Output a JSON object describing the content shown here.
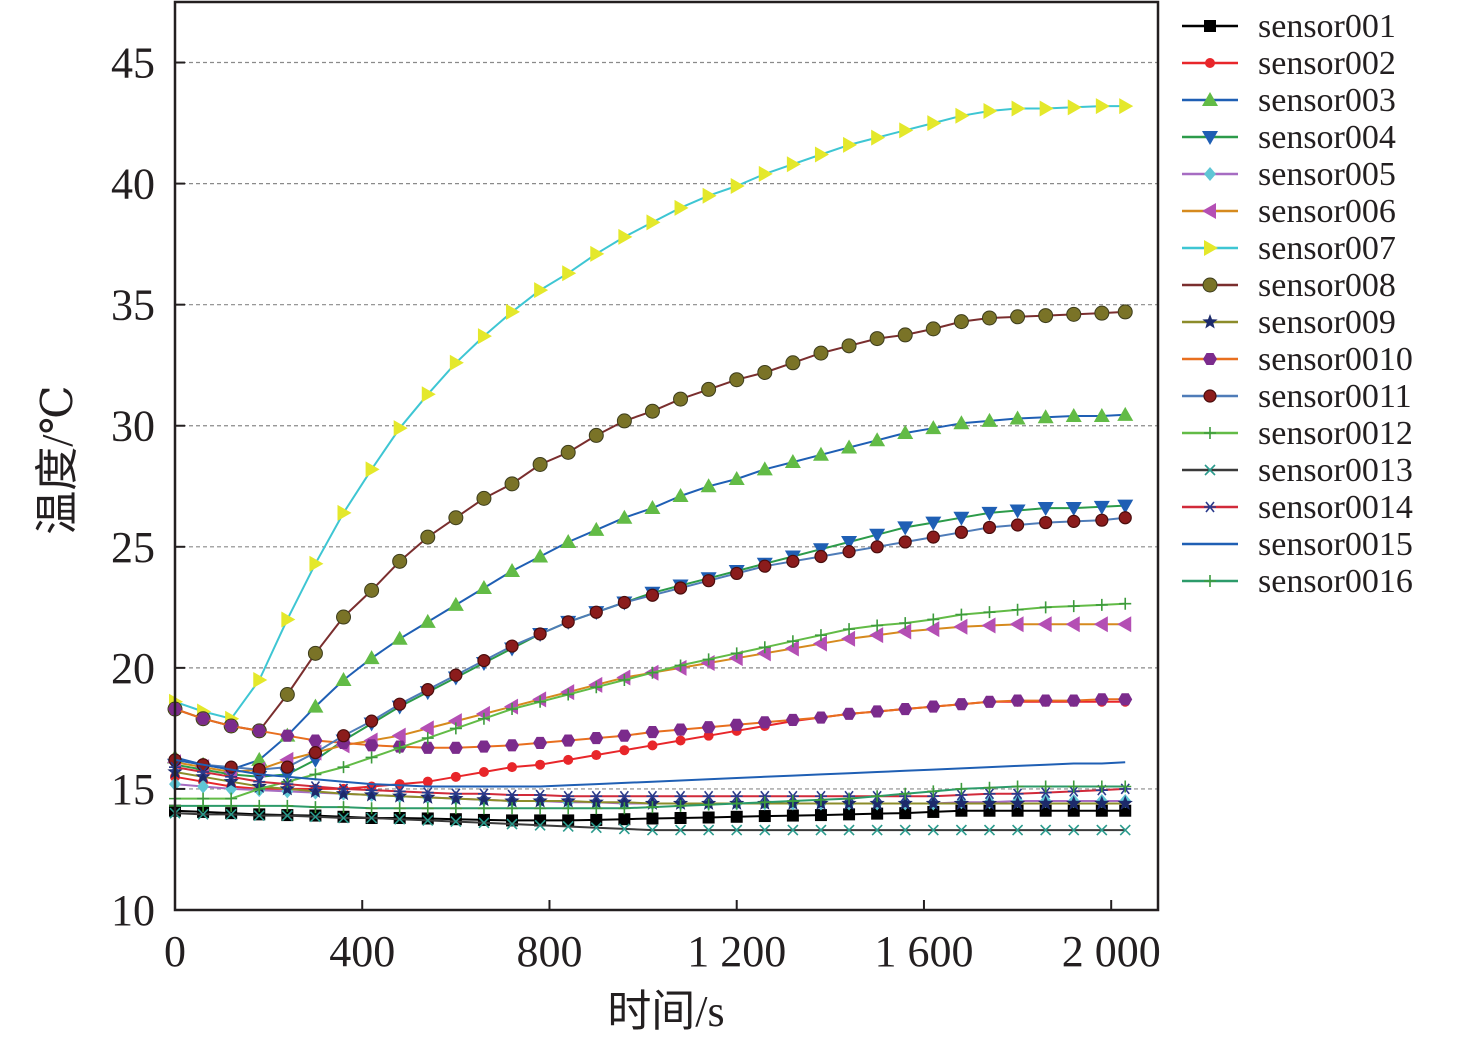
{
  "chart_data": {
    "type": "line",
    "xlabel": "时间/s",
    "ylabel": "温度/℃",
    "xlim": [
      0,
      2100
    ],
    "ylim": [
      10,
      47.5
    ],
    "x_ticks": [
      0,
      400,
      800,
      1200,
      1600,
      2000
    ],
    "x_tick_labels": [
      "0",
      "400",
      "800",
      "1 200",
      "1 600",
      "2 000"
    ],
    "y_ticks": [
      10,
      15,
      20,
      25,
      30,
      35,
      40,
      45
    ],
    "y_tick_labels": [
      "10",
      "15",
      "20",
      "25",
      "30",
      "35",
      "40",
      "45"
    ],
    "grid": "horizontal dashed",
    "legend_position": "right, outside plot",
    "x": [
      0,
      60,
      120,
      180,
      240,
      300,
      360,
      420,
      480,
      540,
      600,
      660,
      720,
      780,
      840,
      900,
      960,
      1020,
      1080,
      1140,
      1200,
      1260,
      1320,
      1380,
      1440,
      1500,
      1560,
      1620,
      1680,
      1740,
      1800,
      1860,
      1920,
      1980,
      2030
    ],
    "series": [
      {
        "name": "sensor001",
        "color": "#000000",
        "marker": "square",
        "values": [
          14.1,
          14.05,
          14.0,
          13.95,
          13.92,
          13.9,
          13.85,
          13.8,
          13.8,
          13.78,
          13.75,
          13.72,
          13.7,
          13.7,
          13.7,
          13.72,
          13.75,
          13.78,
          13.8,
          13.82,
          13.85,
          13.88,
          13.9,
          13.92,
          13.95,
          13.98,
          14.0,
          14.05,
          14.1,
          14.1,
          14.1,
          14.1,
          14.1,
          14.1,
          14.1
        ]
      },
      {
        "name": "sensor002",
        "color": "#e8262a",
        "marker": "dot",
        "values": [
          15.5,
          15.3,
          15.1,
          15.0,
          15.0,
          15.0,
          15.0,
          15.1,
          15.2,
          15.3,
          15.5,
          15.7,
          15.9,
          16.0,
          16.2,
          16.4,
          16.6,
          16.8,
          17.0,
          17.2,
          17.4,
          17.6,
          17.8,
          17.95,
          18.1,
          18.2,
          18.3,
          18.4,
          18.5,
          18.6,
          18.6,
          18.6,
          18.6,
          18.6,
          18.6
        ]
      },
      {
        "name": "sensor003",
        "color": "#62bb46",
        "line_color": "#1f5fb4",
        "marker": "triangle-up",
        "values": [
          16.3,
          16.0,
          15.8,
          16.2,
          17.2,
          18.4,
          19.5,
          20.4,
          21.2,
          21.9,
          22.6,
          23.3,
          24.0,
          24.6,
          25.2,
          25.7,
          26.2,
          26.6,
          27.1,
          27.5,
          27.8,
          28.2,
          28.5,
          28.8,
          29.1,
          29.4,
          29.7,
          29.9,
          30.1,
          30.2,
          30.3,
          30.35,
          30.4,
          30.4,
          30.45
        ]
      },
      {
        "name": "sensor004",
        "color": "#1f5fb4",
        "line_color": "#2c9b4a",
        "marker": "triangle-down",
        "values": [
          16.0,
          15.8,
          15.6,
          15.5,
          15.6,
          16.2,
          17.0,
          17.7,
          18.4,
          19.0,
          19.6,
          20.2,
          20.8,
          21.4,
          21.9,
          22.3,
          22.7,
          23.1,
          23.4,
          23.7,
          24.0,
          24.3,
          24.6,
          24.9,
          25.2,
          25.5,
          25.8,
          26.0,
          26.2,
          26.4,
          26.5,
          26.6,
          26.6,
          26.65,
          26.7
        ]
      },
      {
        "name": "sensor005",
        "color": "#5fc6d5",
        "line_color": "#a66cc2",
        "marker": "diamond",
        "values": [
          15.2,
          15.1,
          15.0,
          14.95,
          14.9,
          14.85,
          14.8,
          14.75,
          14.7,
          14.65,
          14.6,
          14.55,
          14.5,
          14.5,
          14.45,
          14.45,
          14.4,
          14.4,
          14.4,
          14.4,
          14.4,
          14.4,
          14.4,
          14.4,
          14.4,
          14.4,
          14.4,
          14.4,
          14.45,
          14.45,
          14.5,
          14.5,
          14.5,
          14.5,
          14.5
        ]
      },
      {
        "name": "sensor006",
        "color": "#b44fb4",
        "line_color": "#d68a1e",
        "marker": "triangle-left",
        "values": [
          16.1,
          15.9,
          15.7,
          15.8,
          16.2,
          16.5,
          16.8,
          17.0,
          17.2,
          17.5,
          17.8,
          18.1,
          18.4,
          18.7,
          19.0,
          19.3,
          19.6,
          19.8,
          20.0,
          20.2,
          20.4,
          20.6,
          20.8,
          21.0,
          21.2,
          21.35,
          21.5,
          21.6,
          21.7,
          21.75,
          21.8,
          21.8,
          21.8,
          21.8,
          21.8
        ]
      },
      {
        "name": "sensor007",
        "color": "#e4e82b",
        "line_color": "#3ec6d3",
        "marker": "triangle-right",
        "values": [
          18.6,
          18.2,
          17.9,
          19.5,
          22.0,
          24.3,
          26.4,
          28.2,
          29.9,
          31.3,
          32.6,
          33.7,
          34.7,
          35.6,
          36.3,
          37.1,
          37.8,
          38.4,
          39.0,
          39.5,
          39.9,
          40.4,
          40.8,
          41.2,
          41.6,
          41.9,
          42.2,
          42.5,
          42.8,
          43.0,
          43.1,
          43.1,
          43.15,
          43.2,
          43.2
        ]
      },
      {
        "name": "sensor008",
        "color": "#7a7327",
        "line_color": "#7a2e2e",
        "marker": "circle",
        "values": [
          18.3,
          17.9,
          17.6,
          17.4,
          18.9,
          20.6,
          22.1,
          23.2,
          24.4,
          25.4,
          26.2,
          27.0,
          27.6,
          28.4,
          28.9,
          29.6,
          30.2,
          30.6,
          31.1,
          31.5,
          31.9,
          32.2,
          32.6,
          33.0,
          33.3,
          33.6,
          33.75,
          34.0,
          34.3,
          34.45,
          34.5,
          34.55,
          34.6,
          34.65,
          34.7
        ]
      },
      {
        "name": "sensor009",
        "color": "#1c2a6b",
        "line_color": "#8c8c2a",
        "marker": "star",
        "values": [
          15.7,
          15.5,
          15.3,
          15.1,
          15.0,
          14.9,
          14.8,
          14.75,
          14.7,
          14.65,
          14.6,
          14.55,
          14.5,
          14.5,
          14.5,
          14.45,
          14.45,
          14.4,
          14.4,
          14.4,
          14.4,
          14.4,
          14.4,
          14.4,
          14.4,
          14.4,
          14.4,
          14.4,
          14.4,
          14.4,
          14.4,
          14.4,
          14.4,
          14.4,
          14.4
        ]
      },
      {
        "name": "sensor0010",
        "color": "#7b2b8c",
        "line_color": "#e86f1f",
        "marker": "hexagon",
        "values": [
          18.3,
          17.9,
          17.6,
          17.4,
          17.2,
          17.0,
          16.9,
          16.8,
          16.75,
          16.7,
          16.7,
          16.75,
          16.8,
          16.9,
          17.0,
          17.1,
          17.2,
          17.35,
          17.45,
          17.55,
          17.65,
          17.75,
          17.85,
          17.95,
          18.1,
          18.2,
          18.3,
          18.4,
          18.5,
          18.6,
          18.65,
          18.65,
          18.65,
          18.7,
          18.7
        ]
      },
      {
        "name": "sensor0011",
        "color": "#8b1c1c",
        "line_color": "#4f7cb8",
        "marker": "ball",
        "values": [
          16.2,
          16.0,
          15.9,
          15.8,
          15.9,
          16.5,
          17.2,
          17.8,
          18.5,
          19.1,
          19.7,
          20.3,
          20.9,
          21.4,
          21.9,
          22.3,
          22.7,
          23.0,
          23.3,
          23.6,
          23.9,
          24.2,
          24.4,
          24.6,
          24.8,
          25.0,
          25.2,
          25.4,
          25.6,
          25.8,
          25.9,
          26.0,
          26.05,
          26.1,
          26.2
        ]
      },
      {
        "name": "sensor0012",
        "color": "#3d9b3d",
        "line_color": "#62bb46",
        "marker": "plus",
        "values": [
          14.6,
          14.6,
          14.6,
          15.0,
          15.3,
          15.6,
          15.9,
          16.3,
          16.7,
          17.1,
          17.5,
          17.9,
          18.3,
          18.6,
          18.9,
          19.2,
          19.5,
          19.8,
          20.1,
          20.35,
          20.6,
          20.85,
          21.1,
          21.35,
          21.6,
          21.75,
          21.85,
          22.0,
          22.2,
          22.3,
          22.4,
          22.5,
          22.55,
          22.6,
          22.65
        ]
      },
      {
        "name": "sensor0013",
        "color": "#2a9a8c",
        "line_color": "#3a3a3a",
        "marker": "x",
        "values": [
          14.0,
          13.95,
          13.95,
          13.9,
          13.9,
          13.85,
          13.8,
          13.8,
          13.75,
          13.7,
          13.65,
          13.6,
          13.55,
          13.5,
          13.45,
          13.4,
          13.35,
          13.3,
          13.3,
          13.3,
          13.3,
          13.3,
          13.3,
          13.3,
          13.3,
          13.3,
          13.3,
          13.3,
          13.3,
          13.3,
          13.3,
          13.3,
          13.3,
          13.3,
          13.3
        ]
      },
      {
        "name": "sensor0014",
        "color": "#2a3a8c",
        "line_color": "#d12a3a",
        "marker": "asterisk",
        "values": [
          15.9,
          15.7,
          15.5,
          15.3,
          15.2,
          15.1,
          15.0,
          14.95,
          14.9,
          14.85,
          14.8,
          14.8,
          14.75,
          14.75,
          14.7,
          14.7,
          14.7,
          14.7,
          14.7,
          14.7,
          14.7,
          14.7,
          14.7,
          14.7,
          14.7,
          14.7,
          14.7,
          14.7,
          14.75,
          14.8,
          14.8,
          14.85,
          14.9,
          14.95,
          15.0
        ]
      },
      {
        "name": "sensor0015",
        "color": "#f28c28",
        "line_color": "#1f5fb4",
        "marker": "none",
        "values": [
          16.2,
          16.0,
          15.8,
          15.6,
          15.5,
          15.4,
          15.3,
          15.2,
          15.15,
          15.1,
          15.1,
          15.1,
          15.1,
          15.1,
          15.15,
          15.2,
          15.25,
          15.3,
          15.35,
          15.4,
          15.45,
          15.5,
          15.55,
          15.6,
          15.65,
          15.7,
          15.75,
          15.8,
          15.85,
          15.9,
          15.95,
          16.0,
          16.05,
          16.05,
          16.1
        ]
      },
      {
        "name": "sensor0016",
        "color": "#3d9b3d",
        "line_color": "#2c9b6a",
        "marker": "plus",
        "values": [
          14.3,
          14.3,
          14.3,
          14.3,
          14.3,
          14.25,
          14.25,
          14.2,
          14.2,
          14.2,
          14.2,
          14.2,
          14.2,
          14.2,
          14.2,
          14.2,
          14.2,
          14.25,
          14.3,
          14.35,
          14.4,
          14.45,
          14.5,
          14.55,
          14.6,
          14.7,
          14.8,
          14.9,
          15.0,
          15.05,
          15.1,
          15.1,
          15.1,
          15.1,
          15.1
        ]
      }
    ]
  }
}
